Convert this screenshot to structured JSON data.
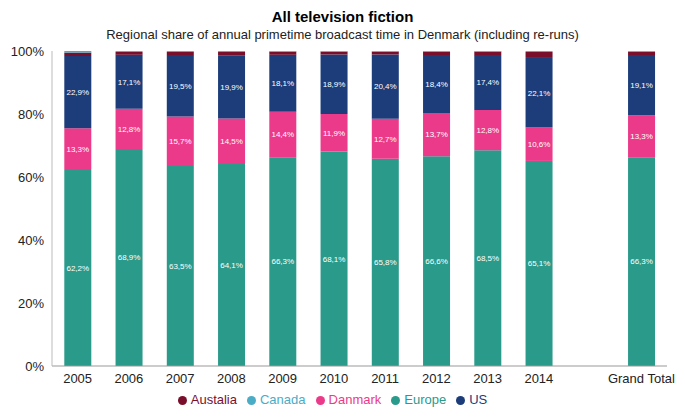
{
  "chart_data": {
    "type": "bar",
    "title": "All television fiction",
    "subtitle": "Regional share of annual primetime broadcast time in Denmark (including re-runs)",
    "categories": [
      "2005",
      "2006",
      "2007",
      "2008",
      "2009",
      "2010",
      "2011",
      "2012",
      "2013",
      "2014",
      null,
      "Grand Total"
    ],
    "stacked": true,
    "data_labels": true,
    "grid": false,
    "legend": "bottom",
    "ylim": [
      0,
      100
    ],
    "yticks": [
      {
        "value": 0,
        "label": "0%"
      },
      {
        "value": 20,
        "label": "20%"
      },
      {
        "value": 40,
        "label": "40%"
      },
      {
        "value": 60,
        "label": "60%"
      },
      {
        "value": 80,
        "label": "80%"
      },
      {
        "value": 100,
        "label": "100%"
      }
    ],
    "series": [
      {
        "name": "Europe",
        "color": "#2a9a8b",
        "values": [
          62.2,
          68.9,
          63.5,
          64.1,
          66.3,
          68.1,
          65.8,
          66.6,
          68.5,
          65.1,
          null,
          66.3
        ],
        "value_labels": [
          "62,2%",
          "68,9%",
          "63,5%",
          "64,1%",
          "66,3%",
          "68,1%",
          "65,8%",
          "66,6%",
          "68,5%",
          "65,1%",
          null,
          "66,3%"
        ]
      },
      {
        "name": "Danmark",
        "color": "#ec3a8a",
        "values": [
          13.3,
          12.8,
          15.7,
          14.5,
          14.4,
          11.9,
          12.7,
          13.7,
          12.8,
          10.6,
          null,
          13.3
        ],
        "value_labels": [
          "13,3%",
          "12,8%",
          "15,7%",
          "14,5%",
          "14,4%",
          "11,9%",
          "12,7%",
          "13,7%",
          "12,8%",
          "10,6%",
          null,
          "13,3%"
        ]
      },
      {
        "name": "US",
        "color": "#1c3d7a",
        "values": [
          22.9,
          17.1,
          19.5,
          19.9,
          18.1,
          18.9,
          20.4,
          18.4,
          17.4,
          22.1,
          null,
          19.1
        ],
        "value_labels": [
          "22,9%",
          "17,1%",
          "19,5%",
          "19,9%",
          "18,1%",
          "18,9%",
          "20,4%",
          "18,4%",
          "17,4%",
          "22,1%",
          null,
          "19,1%"
        ]
      },
      {
        "name": "Austalia",
        "color": "#7a0f2c",
        "values": [
          1.1,
          0.9,
          1.0,
          1.2,
          1.0,
          0.9,
          0.9,
          1.1,
          1.1,
          1.9,
          null,
          1.1
        ]
      },
      {
        "name": "Canada",
        "color": "#4bacc6",
        "values": [
          0.5,
          0.3,
          0.3,
          0.3,
          0.2,
          0.2,
          0.2,
          0.2,
          0.2,
          0.3,
          null,
          0.2
        ]
      }
    ]
  }
}
